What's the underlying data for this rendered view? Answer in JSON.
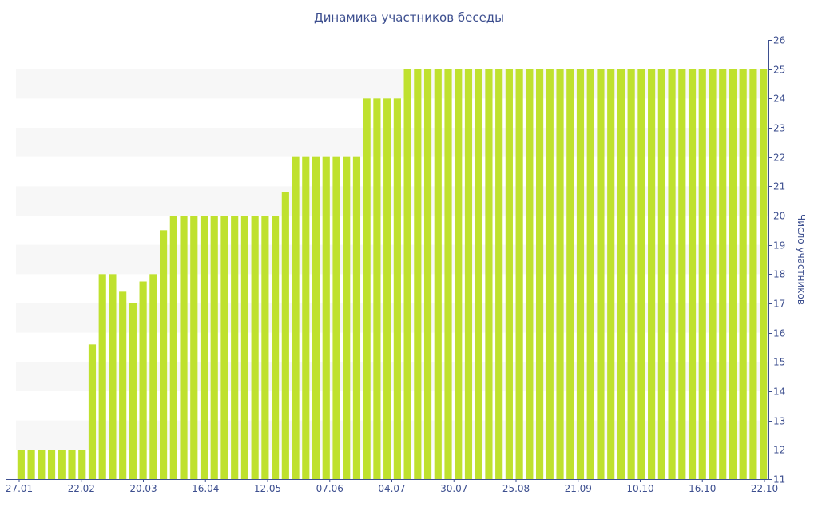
{
  "chart_data": {
    "type": "bar",
    "title": "Динамика участников беседы",
    "ylabel": "Число участников",
    "xlabel": "",
    "ylim": [
      11,
      26
    ],
    "y_axis_position": "right",
    "yticks": [
      11,
      12,
      13,
      14,
      15,
      16,
      17,
      18,
      19,
      20,
      21,
      22,
      23,
      24,
      25,
      26
    ],
    "xtick_labels": [
      "27.01",
      "22.02",
      "20.03",
      "16.04",
      "12.05",
      "07.06",
      "04.07",
      "30.07",
      "25.08",
      "21.09",
      "10.10",
      "16.10",
      "22.10"
    ],
    "grid": "alternating horizontal bands",
    "bar_color": "#bfe12e",
    "band_color": "#f7f7f7",
    "axis_color": "#3d4f8f",
    "values": [
      12,
      12,
      12,
      12,
      12,
      12,
      12,
      15.6,
      18,
      18,
      17.4,
      17,
      17.75,
      18,
      19.5,
      20,
      20,
      20,
      20,
      20,
      20,
      20,
      20,
      20,
      20,
      20,
      20.8,
      22,
      22,
      22,
      22,
      22,
      22,
      22,
      24,
      24,
      24,
      24,
      25,
      25,
      25,
      25,
      25,
      25,
      25,
      25,
      25,
      25,
      25,
      25,
      25,
      25,
      25,
      25,
      25,
      25,
      25,
      25,
      25,
      25,
      25,
      25,
      25,
      25,
      25,
      25,
      25,
      25,
      25,
      25,
      25,
      25,
      25,
      25
    ]
  }
}
